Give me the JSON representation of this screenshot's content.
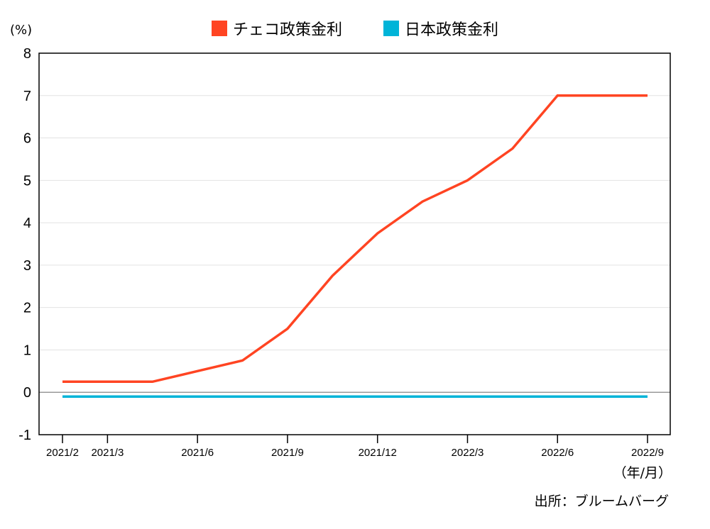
{
  "chart_data": {
    "type": "line",
    "xlabel": "（年/月）",
    "ylabel": "(%)",
    "source": "出所：ブルームバーグ",
    "ylim": [
      -1,
      8
    ],
    "yticks": [
      -1,
      0,
      1,
      2,
      3,
      4,
      5,
      6,
      7,
      8
    ],
    "x_ticks": [
      {
        "label": "2021/2",
        "month_index": 0
      },
      {
        "label": "2021/3",
        "month_index": 1
      },
      {
        "label": "2021/6",
        "month_index": 3
      },
      {
        "label": "2021/9",
        "month_index": 5
      },
      {
        "label": "2021/12",
        "month_index": 7
      },
      {
        "label": "2022/3",
        "month_index": 9
      },
      {
        "label": "2022/6",
        "month_index": 11
      },
      {
        "label": "2022/9",
        "month_index": 13
      }
    ],
    "series": [
      {
        "name": "チェコ政策金利",
        "color": "#ff4422",
        "x": [
          0,
          1,
          2,
          3,
          4,
          5,
          6,
          7,
          8,
          9,
          10,
          11,
          12,
          13
        ],
        "values": [
          0.25,
          0.25,
          0.25,
          0.5,
          0.75,
          1.5,
          2.75,
          3.75,
          4.5,
          5.0,
          5.75,
          7.0,
          7.0,
          7.0
        ]
      },
      {
        "name": "日本政策金利",
        "color": "#00b4d8",
        "x": [
          0,
          13
        ],
        "values": [
          -0.1,
          -0.1
        ]
      }
    ]
  }
}
